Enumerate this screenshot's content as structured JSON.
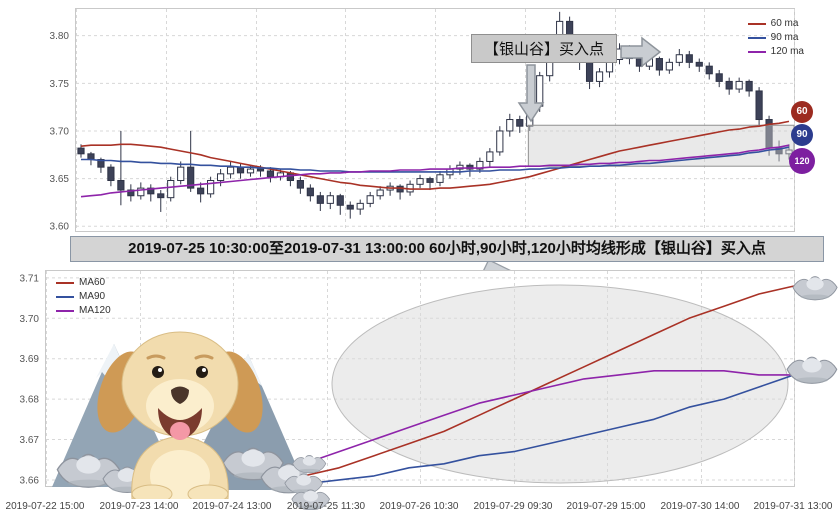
{
  "banner": {
    "text": "2019-07-25 10:30:00至2019-07-31 13:00:00 60小时,90小时,120小时均线形成【银山谷】买入点"
  },
  "x_axis_shared": true,
  "chart_data": [
    {
      "type": "candlestick",
      "title": "",
      "ylim": [
        3.595,
        3.828
      ],
      "yticks": [
        "3.80",
        "3.75",
        "3.70",
        "3.65",
        "3.60"
      ],
      "ytick_values": [
        3.8,
        3.75,
        3.7,
        3.65,
        3.6
      ],
      "grid": true,
      "legend_position": "top-right",
      "legend": [
        "60 ma",
        "90 ma",
        "120 ma"
      ],
      "annotation": "【银山谷】买入点",
      "highlight_box": {
        "x0_frac": 0.63,
        "x1_frac": 1.0,
        "y_top": 3.706,
        "y_bottom": 3.663
      },
      "badges": [
        {
          "label": "60",
          "color": "#9c2b20"
        },
        {
          "label": "90",
          "color": "#2c3c8e"
        },
        {
          "label": "120",
          "color": "#7d1fa0"
        }
      ],
      "candles": [
        [
          3.682,
          3.686,
          3.672,
          3.676
        ],
        [
          3.676,
          3.678,
          3.664,
          3.67
        ],
        [
          3.67,
          3.672,
          3.656,
          3.662
        ],
        [
          3.662,
          3.665,
          3.642,
          3.648
        ],
        [
          3.648,
          3.7,
          3.622,
          3.638
        ],
        [
          3.638,
          3.644,
          3.626,
          3.632
        ],
        [
          3.632,
          3.646,
          3.628,
          3.64
        ],
        [
          3.64,
          3.644,
          3.626,
          3.634
        ],
        [
          3.634,
          3.638,
          3.615,
          3.63
        ],
        [
          3.63,
          3.652,
          3.626,
          3.648
        ],
        [
          3.648,
          3.668,
          3.644,
          3.662
        ],
        [
          3.662,
          3.7,
          3.636,
          3.64
        ],
        [
          3.64,
          3.646,
          3.625,
          3.634
        ],
        [
          3.634,
          3.652,
          3.63,
          3.648
        ],
        [
          3.648,
          3.66,
          3.642,
          3.655
        ],
        [
          3.655,
          3.668,
          3.65,
          3.662
        ],
        [
          3.662,
          3.666,
          3.65,
          3.656
        ],
        [
          3.656,
          3.664,
          3.652,
          3.66
        ],
        [
          3.66,
          3.664,
          3.652,
          3.658
        ],
        [
          3.658,
          3.662,
          3.646,
          3.652
        ],
        [
          3.652,
          3.66,
          3.648,
          3.656
        ],
        [
          3.656,
          3.658,
          3.642,
          3.648
        ],
        [
          3.648,
          3.652,
          3.634,
          3.64
        ],
        [
          3.64,
          3.644,
          3.626,
          3.632
        ],
        [
          3.632,
          3.636,
          3.616,
          3.624
        ],
        [
          3.624,
          3.636,
          3.618,
          3.632
        ],
        [
          3.632,
          3.634,
          3.612,
          3.622
        ],
        [
          3.622,
          3.626,
          3.608,
          3.618
        ],
        [
          3.618,
          3.628,
          3.612,
          3.624
        ],
        [
          3.624,
          3.636,
          3.62,
          3.632
        ],
        [
          3.632,
          3.642,
          3.628,
          3.638
        ],
        [
          3.638,
          3.646,
          3.632,
          3.642
        ],
        [
          3.642,
          3.644,
          3.628,
          3.636
        ],
        [
          3.636,
          3.648,
          3.632,
          3.644
        ],
        [
          3.644,
          3.654,
          3.64,
          3.65
        ],
        [
          3.65,
          3.652,
          3.638,
          3.646
        ],
        [
          3.646,
          3.658,
          3.642,
          3.654
        ],
        [
          3.654,
          3.664,
          3.65,
          3.66
        ],
        [
          3.66,
          3.668,
          3.654,
          3.664
        ],
        [
          3.664,
          3.666,
          3.652,
          3.66
        ],
        [
          3.66,
          3.672,
          3.656,
          3.668
        ],
        [
          3.668,
          3.682,
          3.662,
          3.678
        ],
        [
          3.678,
          3.705,
          3.674,
          3.7
        ],
        [
          3.7,
          3.718,
          3.694,
          3.712
        ],
        [
          3.712,
          3.716,
          3.698,
          3.705
        ],
        [
          3.705,
          3.73,
          3.7,
          3.726
        ],
        [
          3.726,
          3.762,
          3.72,
          3.758
        ],
        [
          3.758,
          3.798,
          3.752,
          3.792
        ],
        [
          3.792,
          3.825,
          3.786,
          3.815
        ],
        [
          3.815,
          3.82,
          3.788,
          3.795
        ],
        [
          3.795,
          3.8,
          3.764,
          3.772
        ],
        [
          3.772,
          3.776,
          3.744,
          3.752
        ],
        [
          3.752,
          3.766,
          3.746,
          3.762
        ],
        [
          3.762,
          3.78,
          3.756,
          3.775
        ],
        [
          3.775,
          3.792,
          3.77,
          3.786
        ],
        [
          3.786,
          3.79,
          3.77,
          3.776
        ],
        [
          3.776,
          3.78,
          3.762,
          3.768
        ],
        [
          3.768,
          3.78,
          3.764,
          3.776
        ],
        [
          3.776,
          3.778,
          3.758,
          3.764
        ],
        [
          3.764,
          3.776,
          3.76,
          3.772
        ],
        [
          3.772,
          3.786,
          3.768,
          3.78
        ],
        [
          3.78,
          3.784,
          3.766,
          3.772
        ],
        [
          3.772,
          3.776,
          3.762,
          3.768
        ],
        [
          3.768,
          3.772,
          3.754,
          3.76
        ],
        [
          3.76,
          3.764,
          3.746,
          3.752
        ],
        [
          3.752,
          3.756,
          3.738,
          3.744
        ],
        [
          3.744,
          3.756,
          3.74,
          3.752
        ],
        [
          3.752,
          3.754,
          3.736,
          3.742
        ],
        [
          3.742,
          3.746,
          3.706,
          3.712
        ],
        [
          3.712,
          3.716,
          3.674,
          3.682
        ],
        [
          3.682,
          3.69,
          3.668,
          3.676
        ],
        [
          3.676,
          3.686,
          3.67,
          3.68
        ]
      ],
      "series": [
        {
          "name": "60 ma",
          "color": "#a93226",
          "values": [
            3.684,
            3.685,
            3.685,
            3.685,
            3.686,
            3.686,
            3.685,
            3.684,
            3.683,
            3.681,
            3.679,
            3.677,
            3.675,
            3.672,
            3.67,
            3.668,
            3.666,
            3.664,
            3.662,
            3.66,
            3.658,
            3.656,
            3.654,
            3.652,
            3.65,
            3.648,
            3.646,
            3.645,
            3.643,
            3.642,
            3.641,
            3.64,
            3.64,
            3.639,
            3.639,
            3.639,
            3.64,
            3.64,
            3.641,
            3.642,
            3.643,
            3.644,
            3.646,
            3.648,
            3.65,
            3.652,
            3.655,
            3.658,
            3.661,
            3.664,
            3.667,
            3.67,
            3.673,
            3.676,
            3.679,
            3.681,
            3.683,
            3.685,
            3.687,
            3.689,
            3.691,
            3.693,
            3.695,
            3.697,
            3.699,
            3.701,
            3.702,
            3.704,
            3.705,
            3.707,
            3.708,
            3.71
          ]
        },
        {
          "name": "90 ma",
          "color": "#34519e",
          "values": [
            3.67,
            3.67,
            3.669,
            3.669,
            3.668,
            3.668,
            3.667,
            3.667,
            3.666,
            3.666,
            3.665,
            3.665,
            3.664,
            3.664,
            3.663,
            3.663,
            3.662,
            3.662,
            3.661,
            3.661,
            3.66,
            3.66,
            3.659,
            3.659,
            3.658,
            3.658,
            3.658,
            3.657,
            3.657,
            3.657,
            3.657,
            3.657,
            3.657,
            3.657,
            3.657,
            3.657,
            3.657,
            3.657,
            3.657,
            3.658,
            3.658,
            3.658,
            3.659,
            3.659,
            3.659,
            3.66,
            3.66,
            3.661,
            3.661,
            3.662,
            3.662,
            3.663,
            3.663,
            3.664,
            3.664,
            3.665,
            3.666,
            3.666,
            3.667,
            3.668,
            3.669,
            3.67,
            3.671,
            3.672,
            3.673,
            3.674,
            3.675,
            3.677,
            3.678,
            3.68,
            3.681,
            3.683
          ]
        },
        {
          "name": "120 ma",
          "color": "#8e24aa",
          "values": [
            3.631,
            3.632,
            3.633,
            3.635,
            3.636,
            3.637,
            3.638,
            3.639,
            3.64,
            3.641,
            3.642,
            3.643,
            3.644,
            3.645,
            3.646,
            3.647,
            3.648,
            3.649,
            3.65,
            3.651,
            3.652,
            3.653,
            3.654,
            3.655,
            3.655,
            3.656,
            3.656,
            3.657,
            3.657,
            3.658,
            3.658,
            3.658,
            3.659,
            3.659,
            3.659,
            3.66,
            3.66,
            3.66,
            3.661,
            3.661,
            3.661,
            3.662,
            3.662,
            3.662,
            3.663,
            3.663,
            3.663,
            3.664,
            3.664,
            3.664,
            3.665,
            3.665,
            3.666,
            3.666,
            3.667,
            3.667,
            3.668,
            3.669,
            3.669,
            3.67,
            3.671,
            3.672,
            3.673,
            3.674,
            3.675,
            3.676,
            3.677,
            3.679,
            3.68,
            3.682,
            3.683,
            3.685
          ]
        }
      ]
    },
    {
      "type": "line",
      "title": "",
      "ylim": [
        3.6585,
        3.7117
      ],
      "yticks": [
        "3.71",
        "3.70",
        "3.69",
        "3.68",
        "3.67",
        "3.66"
      ],
      "ytick_values": [
        3.71,
        3.7,
        3.69,
        3.68,
        3.67,
        3.66
      ],
      "grid": true,
      "legend_position": "top-left",
      "legend": [
        "MA60",
        "MA90",
        "MA120"
      ],
      "x_start_frac": 0.345,
      "series": [
        {
          "name": "MA60",
          "color": "#a93226",
          "values": [
            3.661,
            3.663,
            3.666,
            3.669,
            3.672,
            3.676,
            3.68,
            3.684,
            3.688,
            3.692,
            3.696,
            3.7,
            3.703,
            3.706,
            3.708
          ]
        },
        {
          "name": "MA90",
          "color": "#34519e",
          "values": [
            3.659,
            3.66,
            3.661,
            3.663,
            3.664,
            3.666,
            3.667,
            3.669,
            3.671,
            3.673,
            3.675,
            3.678,
            3.68,
            3.683,
            3.686
          ]
        },
        {
          "name": "MA120",
          "color": "#8e24aa",
          "values": [
            3.664,
            3.667,
            3.67,
            3.673,
            3.676,
            3.679,
            3.681,
            3.683,
            3.685,
            3.686,
            3.687,
            3.687,
            3.687,
            3.686,
            3.686
          ]
        }
      ],
      "xlabels": [
        "2019-07-22 15:00",
        "2019-07-23 14:00",
        "2019-07-24 13:00",
        "2019-07-25 11:30",
        "2019-07-26 10:30",
        "2019-07-29 09:30",
        "2019-07-29 15:00",
        "2019-07-30 14:00",
        "2019-07-31 13:00"
      ]
    }
  ]
}
